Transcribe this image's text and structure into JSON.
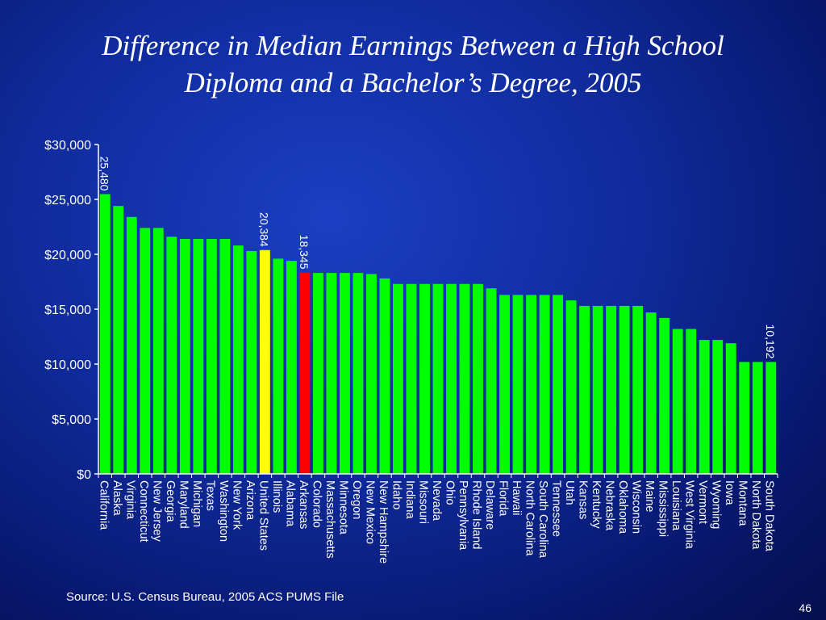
{
  "slide": {
    "title_line1": "Difference in Median Earnings Between a High School",
    "title_line2": "Diploma and a Bachelor’s Degree, 2005",
    "source": "Source:  U.S. Census Bureau, 2005 ACS PUMS File",
    "page_number": "46"
  },
  "colors": {
    "default_bar": "#00ff00",
    "highlight_us": "#ffff00",
    "highlight_state": "#ff0000"
  },
  "chart_data": {
    "type": "bar",
    "title": "Difference in Median Earnings Between a High School Diploma and a Bachelor’s Degree, 2005",
    "xlabel": "",
    "ylabel": "",
    "ylim": [
      0,
      30000
    ],
    "yticks": [
      0,
      5000,
      10000,
      15000,
      20000,
      25000,
      30000
    ],
    "ytick_labels": [
      "$0",
      "$5,000",
      "$10,000",
      "$15,000",
      "$20,000",
      "$25,000",
      "$30,000"
    ],
    "grid": false,
    "categories": [
      "California",
      "Alaska",
      "Virginia",
      "Connecticut",
      "New Jersey",
      "Georgia",
      "Maryland",
      "Michigan",
      "Texas",
      "Washington",
      "New York",
      "Arizona",
      "United States",
      "Illinois",
      "Alabama",
      "Arkansas",
      "Colorado",
      "Massachusetts",
      "Minnesota",
      "Oregon",
      "New Mexico",
      "New Hampshire",
      "Idaho",
      "Indiana",
      "Missouri",
      "Nevada",
      "Ohio",
      "Pennsylvania",
      "Rhode Island",
      "Delaware",
      "Florida",
      "Hawaii",
      "North Carolina",
      "South Carolina",
      "Tennessee",
      "Utah",
      "Kansas",
      "Kentucky",
      "Nebraska",
      "Oklahoma",
      "Wisconsin",
      "Maine",
      "Mississippi",
      "Louisiana",
      "West Virginia",
      "Vermont",
      "Wyoming",
      "Iowa",
      "Montana",
      "North Dakota",
      "South Dakota"
    ],
    "values": [
      25480,
      24400,
      23400,
      22400,
      22400,
      21600,
      21400,
      21400,
      21400,
      21400,
      20800,
      20300,
      20384,
      19600,
      19400,
      18345,
      18300,
      18300,
      18300,
      18300,
      18200,
      17800,
      17300,
      17300,
      17300,
      17300,
      17300,
      17300,
      17300,
      16900,
      16300,
      16300,
      16300,
      16300,
      16300,
      15800,
      15300,
      15300,
      15300,
      15300,
      15300,
      14700,
      14200,
      13200,
      13200,
      12200,
      12200,
      11900,
      10192,
      10192,
      10192
    ],
    "highlight": {
      "United States": "yellow",
      "Arkansas": "red"
    },
    "data_labels": [
      {
        "category": "California",
        "text": "25,480"
      },
      {
        "category": "United States",
        "text": "20,384"
      },
      {
        "category": "Arkansas",
        "text": "18,345"
      },
      {
        "category": "South Dakota",
        "text": "10,192"
      }
    ]
  }
}
